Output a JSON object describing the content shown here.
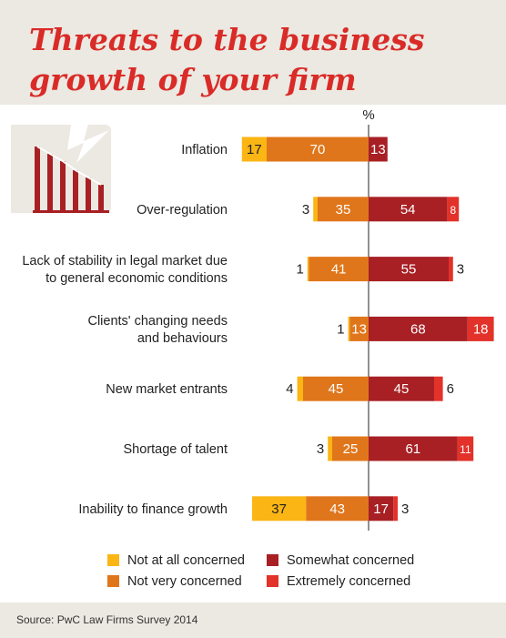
{
  "title": "Threats to the business growth of your firm",
  "source": "Source: PwC Law Firms Survey 2014",
  "icon": "bar-chart-lightning-icon",
  "colors": {
    "not_at_all": "#fbb514",
    "not_very": "#e0761b",
    "somewhat": "#a82024",
    "extremely": "#e2322a",
    "title": "#d92b27",
    "header_bg": "#ece8e2"
  },
  "chart_data": {
    "type": "bar",
    "orientation": "horizontal",
    "stacked": "diverging",
    "unit_label": "%",
    "categories": [
      "Inflation",
      "Over-regulation",
      "Lack of stability in legal market due to general economic conditions",
      "Clients' changing needs and behaviours",
      "New market entrants",
      "Shortage of talent",
      "Inability to finance growth"
    ],
    "category_lines": [
      [
        "Inflation"
      ],
      [
        "Over-regulation"
      ],
      [
        "Lack of stability in legal market due",
        "to general economic conditions"
      ],
      [
        "Clients' changing needs",
        "and behaviours"
      ],
      [
        "New market entrants"
      ],
      [
        "Shortage of talent"
      ],
      [
        "Inability to finance growth"
      ]
    ],
    "series": [
      {
        "name": "Not at all concerned",
        "side": "left",
        "values": [
          17,
          3,
          1,
          1,
          4,
          3,
          37
        ]
      },
      {
        "name": "Not very concerned",
        "side": "left",
        "values": [
          70,
          35,
          41,
          13,
          45,
          25,
          43
        ]
      },
      {
        "name": "Somewhat concerned",
        "side": "right",
        "values": [
          13,
          54,
          55,
          68,
          45,
          61,
          17
        ]
      },
      {
        "name": "Extremely concerned",
        "side": "right",
        "values": [
          0,
          8,
          3,
          18,
          6,
          11,
          3
        ]
      }
    ],
    "legend_position": "bottom",
    "legend_order": [
      "Not at all concerned",
      "Somewhat concerned",
      "Not very concerned",
      "Extremely concerned"
    ],
    "grid": false
  }
}
